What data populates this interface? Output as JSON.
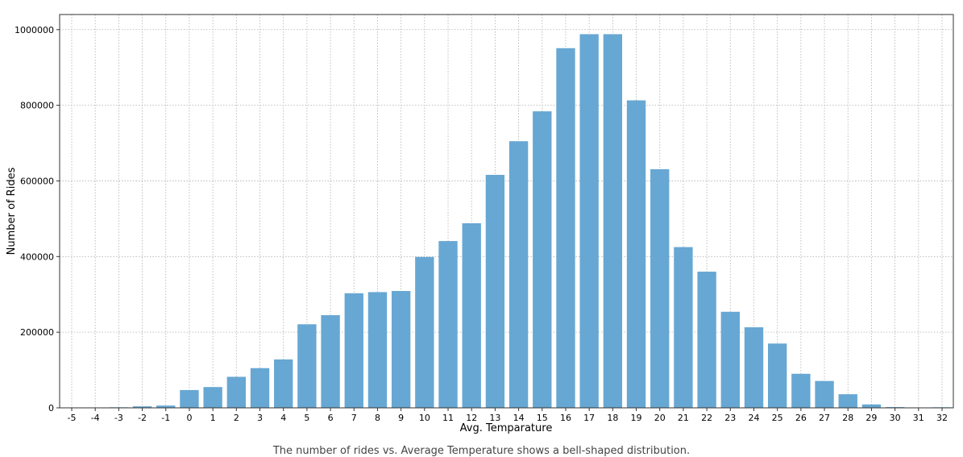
{
  "chart_data": {
    "type": "bar",
    "title": "",
    "xlabel": "Avg. Temparature",
    "ylabel": "Number of Rides",
    "categories": [
      "-5",
      "-4",
      "-3",
      "-2",
      "-1",
      "0",
      "1",
      "2",
      "3",
      "4",
      "5",
      "6",
      "7",
      "8",
      "9",
      "10",
      "11",
      "12",
      "13",
      "14",
      "15",
      "16",
      "17",
      "18",
      "19",
      "20",
      "21",
      "22",
      "23",
      "24",
      "25",
      "26",
      "27",
      "28",
      "29",
      "30",
      "31",
      "32"
    ],
    "values": [
      300,
      1000,
      1500,
      4000,
      6000,
      47000,
      55000,
      82000,
      105000,
      128000,
      221000,
      245000,
      303000,
      306000,
      309000,
      399000,
      441000,
      488000,
      616000,
      705000,
      784000,
      951000,
      988000,
      988000,
      813000,
      631000,
      425000,
      360000,
      254000,
      213000,
      170000,
      90000,
      71000,
      36000,
      9000,
      2000,
      1000,
      1500
    ],
    "ylim": [
      0,
      1040000
    ],
    "yticks": [
      "0",
      "200000",
      "400000",
      "600000",
      "800000",
      "1000000"
    ],
    "grid": true,
    "bar_color": "#67a7d3",
    "caption": "The number of rides vs. Average Temperature shows a bell-shaped distribution."
  }
}
